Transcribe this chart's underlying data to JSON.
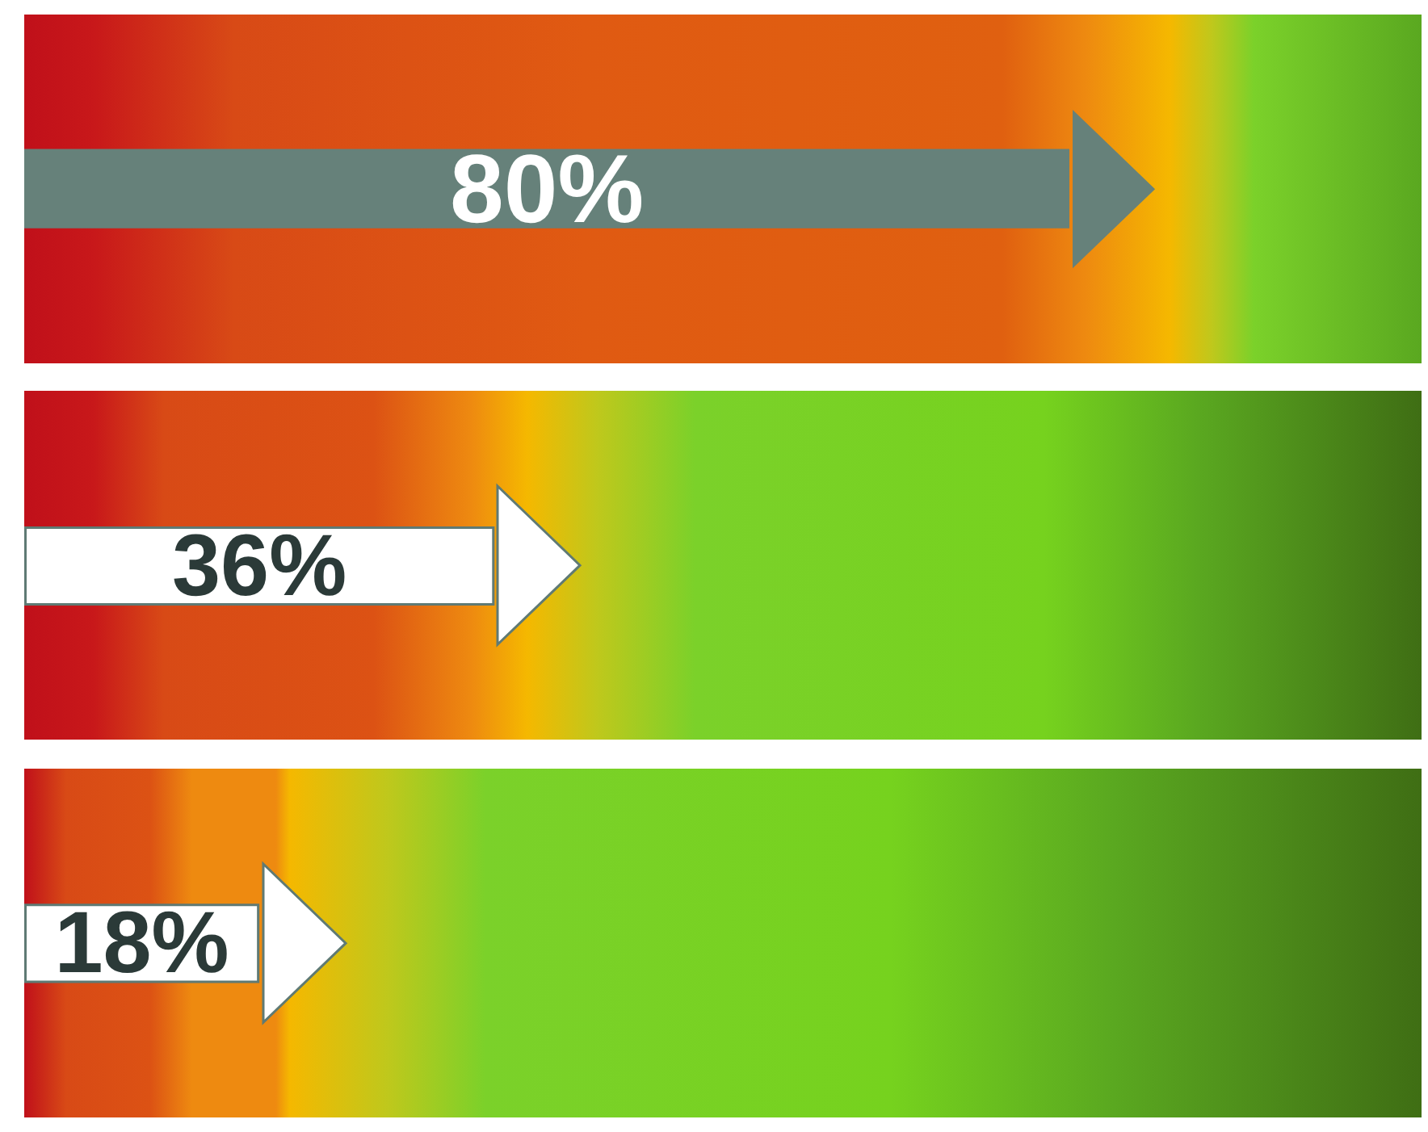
{
  "chart_data": {
    "type": "bar",
    "orientation": "horizontal",
    "categories": [
      null,
      null,
      null
    ],
    "values": [
      80,
      36,
      18
    ],
    "colors": [
      "#66817a",
      "#ffffff",
      "#ffffff"
    ],
    "value_labels": [
      "80%",
      "36%",
      "18%"
    ],
    "tick_labels": false
  }
}
